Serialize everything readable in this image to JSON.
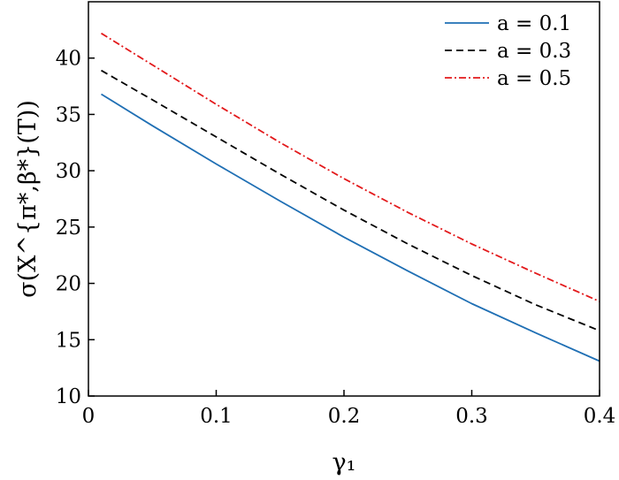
{
  "chart_data": {
    "type": "line",
    "xlabel": "γ₁",
    "ylabel": "σ(X^{π*,β*}(T))",
    "xlim": [
      0,
      0.4
    ],
    "ylim": [
      10,
      45
    ],
    "x_ticks": [
      0,
      0.1,
      0.2,
      0.3,
      0.4
    ],
    "x_tick_labels": [
      "0",
      "0.1",
      "0.2",
      "0.3",
      "0.4"
    ],
    "y_ticks": [
      10,
      15,
      20,
      25,
      30,
      35,
      40
    ],
    "y_tick_labels": [
      "10",
      "15",
      "20",
      "25",
      "30",
      "35",
      "40"
    ],
    "grid": false,
    "legend_position": "top-right",
    "x": [
      0.01,
      0.05,
      0.1,
      0.15,
      0.2,
      0.25,
      0.3,
      0.35,
      0.4
    ],
    "series": [
      {
        "name": "a = 0.1",
        "color": "#1f6fb4",
        "dash": "solid",
        "values": [
          36.8,
          34.0,
          30.6,
          27.3,
          24.1,
          21.1,
          18.2,
          15.6,
          13.1
        ]
      },
      {
        "name": "a = 0.3",
        "color": "#000000",
        "dash": "dashed",
        "values": [
          38.9,
          36.3,
          33.0,
          29.7,
          26.5,
          23.5,
          20.7,
          18.1,
          15.8
        ]
      },
      {
        "name": "a = 0.5",
        "color": "#e31a1c",
        "dash": "dashdot",
        "values": [
          42.2,
          39.4,
          35.9,
          32.5,
          29.3,
          26.3,
          23.5,
          20.9,
          18.4
        ]
      }
    ]
  }
}
